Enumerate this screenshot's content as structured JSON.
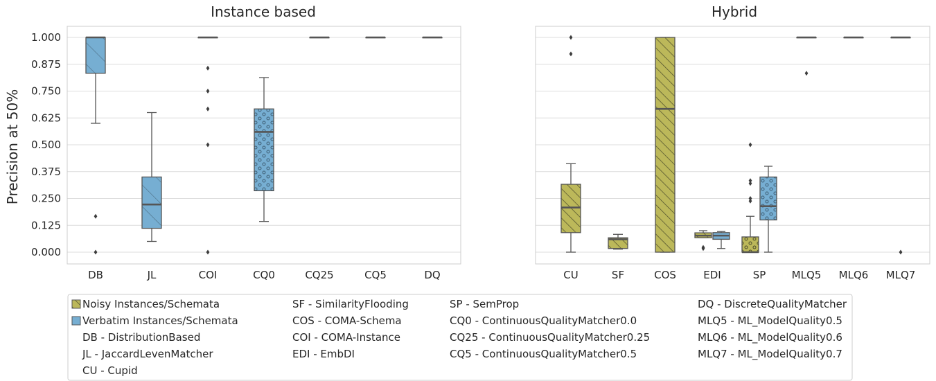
{
  "chart_data": {
    "type": "box",
    "ylabel": "Precision at 50%",
    "yticks": [
      "0.000",
      "0.125",
      "0.250",
      "0.375",
      "0.500",
      "0.625",
      "0.750",
      "0.875",
      "1.000"
    ],
    "ylim": [
      -0.05,
      1.05
    ],
    "grid": true,
    "colors": {
      "noisy": "#bcb85a",
      "verbatim": "#76aed2"
    },
    "panels": [
      {
        "title": "Instance based",
        "categories": [
          "DB",
          "JL",
          "COI",
          "CQ0",
          "CQ25",
          "CQ5",
          "DQ"
        ],
        "boxes": [
          {
            "category": "DB",
            "group": "verbatim",
            "q1": 0.833,
            "median": 1.0,
            "q3": 1.0,
            "whisker_low": 0.6,
            "whisker_high": 1.0,
            "outliers": [
              0.167,
              0.0
            ]
          },
          {
            "category": "JL",
            "group": "verbatim",
            "q1": 0.111,
            "median": 0.222,
            "q3": 0.35,
            "whisker_low": 0.05,
            "whisker_high": 0.65,
            "outliers": []
          },
          {
            "category": "COI",
            "group": "verbatim",
            "q1": 1.0,
            "median": 1.0,
            "q3": 1.0,
            "whisker_low": 1.0,
            "whisker_high": 1.0,
            "outliers": [
              0.857,
              0.75,
              0.667,
              0.5,
              0.0
            ]
          },
          {
            "category": "CQ0",
            "group": "verbatim",
            "q1": 0.286,
            "median": 0.56,
            "q3": 0.667,
            "whisker_low": 0.143,
            "whisker_high": 0.813,
            "outliers": []
          },
          {
            "category": "CQ25",
            "group": "verbatim",
            "q1": 1.0,
            "median": 1.0,
            "q3": 1.0,
            "whisker_low": 1.0,
            "whisker_high": 1.0,
            "outliers": []
          },
          {
            "category": "CQ5",
            "group": "verbatim",
            "q1": 1.0,
            "median": 1.0,
            "q3": 1.0,
            "whisker_low": 1.0,
            "whisker_high": 1.0,
            "outliers": []
          },
          {
            "category": "DQ",
            "group": "verbatim",
            "q1": 1.0,
            "median": 1.0,
            "q3": 1.0,
            "whisker_low": 1.0,
            "whisker_high": 1.0,
            "outliers": []
          }
        ]
      },
      {
        "title": "Hybrid",
        "categories": [
          "CU",
          "SF",
          "COS",
          "EDI",
          "SP",
          "MLQ5",
          "MLQ6",
          "MLQ7"
        ],
        "boxes": [
          {
            "category": "CU",
            "group": "noisy",
            "q1": 0.091,
            "median": 0.208,
            "q3": 0.316,
            "whisker_low": 0.0,
            "whisker_high": 0.412,
            "outliers": [
              1.0,
              0.923
            ]
          },
          {
            "category": "SF",
            "group": "noisy",
            "q1": 0.017,
            "median": 0.06,
            "q3": 0.067,
            "whisker_low": 0.014,
            "whisker_high": 0.083,
            "outliers": []
          },
          {
            "category": "COS",
            "group": "noisy",
            "q1": 0.0,
            "median": 0.667,
            "q3": 1.0,
            "whisker_low": 0.0,
            "whisker_high": 1.0,
            "outliers": []
          },
          {
            "category": "EDI",
            "group": "noisy",
            "q1": 0.067,
            "median": 0.077,
            "q3": 0.09,
            "whisker_low": 0.067,
            "whisker_high": 0.1,
            "outliers": [
              0.017,
              0.022
            ]
          },
          {
            "category": "EDI",
            "group": "verbatim",
            "q1": 0.06,
            "median": 0.077,
            "q3": 0.091,
            "whisker_low": 0.017,
            "whisker_high": 0.096,
            "outliers": []
          },
          {
            "category": "SP",
            "group": "noisy",
            "q1": 0.0,
            "median": 0.0,
            "q3": 0.071,
            "whisker_low": 0.0,
            "whisker_high": 0.167,
            "outliers": [
              0.5,
              0.333,
              0.32,
              0.25,
              0.238
            ]
          },
          {
            "category": "SP",
            "group": "verbatim",
            "q1": 0.15,
            "median": 0.214,
            "q3": 0.35,
            "whisker_low": 0.0,
            "whisker_high": 0.4,
            "outliers": []
          },
          {
            "category": "MLQ5",
            "group": "verbatim",
            "q1": 1.0,
            "median": 1.0,
            "q3": 1.0,
            "whisker_low": 1.0,
            "whisker_high": 1.0,
            "outliers": [
              0.833
            ]
          },
          {
            "category": "MLQ6",
            "group": "verbatim",
            "q1": 1.0,
            "median": 1.0,
            "q3": 1.0,
            "whisker_low": 1.0,
            "whisker_high": 1.0,
            "outliers": []
          },
          {
            "category": "MLQ7",
            "group": "verbatim",
            "q1": 1.0,
            "median": 1.0,
            "q3": 1.0,
            "whisker_low": 1.0,
            "whisker_high": 1.0,
            "outliers": [
              0.0
            ]
          }
        ]
      }
    ],
    "legend": {
      "placement": "bottom",
      "entries": [
        {
          "text": "Noisy Instances/Schemata",
          "swatch": "noisy"
        },
        {
          "text": "Verbatim Instances/Schemata",
          "swatch": "verbatim"
        },
        {
          "text": "DB - DistributionBased"
        },
        {
          "text": "JL - JaccardLevenMatcher"
        },
        {
          "text": "CU - Cupid"
        },
        {
          "text": "SF - SimilarityFlooding"
        },
        {
          "text": "COS - COMA-Schema"
        },
        {
          "text": "COI - COMA-Instance"
        },
        {
          "text": "EDI - EmbDI"
        },
        {
          "text": "SP - SemProp"
        },
        {
          "text": "CQ0 - ContinuousQualityMatcher0.0"
        },
        {
          "text": "CQ25 - ContinuousQualityMatcher0.25"
        },
        {
          "text": "CQ5 - ContinuousQualityMatcher0.5"
        },
        {
          "text": "DQ - DiscreteQualityMatcher"
        },
        {
          "text": "MLQ5 - ML_ModelQuality0.5"
        },
        {
          "text": "MLQ6 - ML_ModelQuality0.6"
        },
        {
          "text": "MLQ7 - ML_ModelQuality0.7"
        }
      ]
    }
  }
}
